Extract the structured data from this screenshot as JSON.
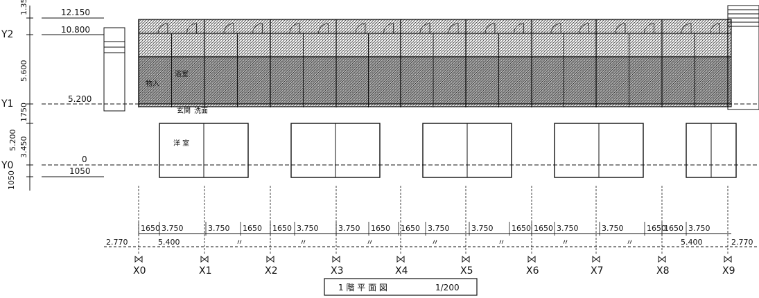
{
  "drawing": {
    "title": "1 階 平 面 図",
    "scale": "1/200"
  },
  "levels": {
    "top": "12.150",
    "roof_line": "10.800",
    "y1_level": "5.200",
    "zero": "0",
    "bottom": "1050"
  },
  "left_dims": [
    "1.350",
    "5.600",
    "1750",
    "5.200",
    "3.450",
    "1050"
  ],
  "y_axes": [
    "Y2",
    "Y1",
    "Y0"
  ],
  "x_axes": [
    "X0",
    "X1",
    "X2",
    "X3",
    "X4",
    "X5",
    "X6",
    "X7",
    "X8",
    "X9"
  ],
  "dims_row1": [
    "1650",
    "3.750",
    "3.750",
    "1650",
    "1650",
    "3.750",
    "3.750",
    "1650",
    "1650",
    "3.750",
    "3.750",
    "1650",
    "1650",
    "3.750",
    "3.750",
    "1650",
    "1650",
    "3.750"
  ],
  "dims_row2": {
    "left_end": "2.770",
    "first_bay": "5.400",
    "ditto": "〃",
    "last_bay": "5.400",
    "right_end": "2.770"
  },
  "rooms": {
    "western_room": "洋 室",
    "entrance": "玄関",
    "misc_labels": [
      "物入",
      "浴室",
      "洗面"
    ]
  },
  "colors": {
    "ink": "#111111",
    "hatch": "#555555",
    "paper": "#ffffff"
  }
}
